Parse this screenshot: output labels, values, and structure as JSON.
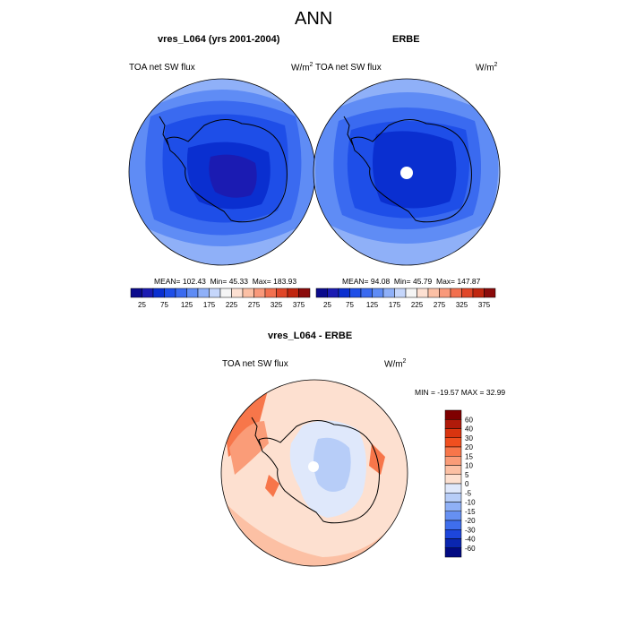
{
  "main_title": "ANN",
  "chart_data": [
    {
      "type": "heatmap",
      "title": "vres_L064 (yrs 2001-2004)",
      "variable_label": "TOA net SW flux",
      "units_base": "W/m",
      "units_exp": "2",
      "projection": "south polar stereographic",
      "stats": {
        "mean_label": "MEAN=",
        "mean": "102.43",
        "min_label": "Min=",
        "min": "45.33",
        "max_label": "Max=",
        "max": "183.93"
      },
      "colorbar": {
        "orientation": "horizontal",
        "levels": [
          25,
          50,
          75,
          100,
          125,
          150,
          175,
          200,
          225,
          250,
          275,
          300,
          325,
          350,
          375
        ],
        "tick_labels": [
          "25",
          "75",
          "125",
          "175",
          "225",
          "275",
          "325",
          "375"
        ],
        "colors": [
          "#0b0b8c",
          "#1b1bb2",
          "#0a2fd0",
          "#1e4ee8",
          "#3a6af0",
          "#5f8cf5",
          "#8fb0f8",
          "#c5d6fb",
          "#f5f5f5",
          "#fde0d2",
          "#fcc0a5",
          "#f9997b",
          "#f2704f",
          "#e04628",
          "#c0260f",
          "#8b0b0b"
        ]
      }
    },
    {
      "type": "heatmap",
      "title": "ERBE",
      "variable_label": "TOA net SW flux",
      "units_base": "W/m",
      "units_exp": "2",
      "projection": "south polar stereographic",
      "stats": {
        "mean_label": "MEAN=",
        "mean": "94.08",
        "min_label": "Min=",
        "min": "45.79",
        "max_label": "Max=",
        "max": "147.87"
      },
      "colorbar": {
        "orientation": "horizontal",
        "levels": [
          25,
          50,
          75,
          100,
          125,
          150,
          175,
          200,
          225,
          250,
          275,
          300,
          325,
          350,
          375
        ],
        "tick_labels": [
          "25",
          "75",
          "125",
          "175",
          "225",
          "275",
          "325",
          "375"
        ],
        "colors": [
          "#0b0b8c",
          "#1b1bb2",
          "#0a2fd0",
          "#1e4ee8",
          "#3a6af0",
          "#5f8cf5",
          "#8fb0f8",
          "#c5d6fb",
          "#f5f5f5",
          "#fde0d2",
          "#fcc0a5",
          "#f9997b",
          "#f2704f",
          "#e04628",
          "#c0260f",
          "#8b0b0b"
        ]
      }
    },
    {
      "type": "heatmap",
      "title": "vres_L064 - ERBE",
      "variable_label": "TOA net SW flux",
      "units_base": "W/m",
      "units_exp": "2",
      "projection": "south polar stereographic",
      "stats": {
        "min_label": "MIN =",
        "min": "-19.57",
        "max_label": "MAX =",
        "max": "32.99"
      },
      "colorbar": {
        "orientation": "vertical",
        "levels": [
          -60,
          -40,
          -30,
          -20,
          -15,
          -10,
          -5,
          0,
          5,
          10,
          15,
          20,
          30,
          40,
          60
        ],
        "tick_labels": [
          "60",
          "40",
          "30",
          "20",
          "15",
          "10",
          "5",
          "0",
          "-5",
          "-10",
          "-15",
          "-20",
          "-30",
          "-40",
          "-60"
        ],
        "colors_top_to_bottom": [
          "#7f0000",
          "#b01a0a",
          "#d9340f",
          "#f04f1f",
          "#f7764a",
          "#fa9c78",
          "#fcc0a4",
          "#fde0d0",
          "#dfe8fb",
          "#b7cdf8",
          "#8fb0f6",
          "#6690f2",
          "#3f6eec",
          "#1d46dc",
          "#0a26b0",
          "#020a82"
        ]
      }
    }
  ]
}
